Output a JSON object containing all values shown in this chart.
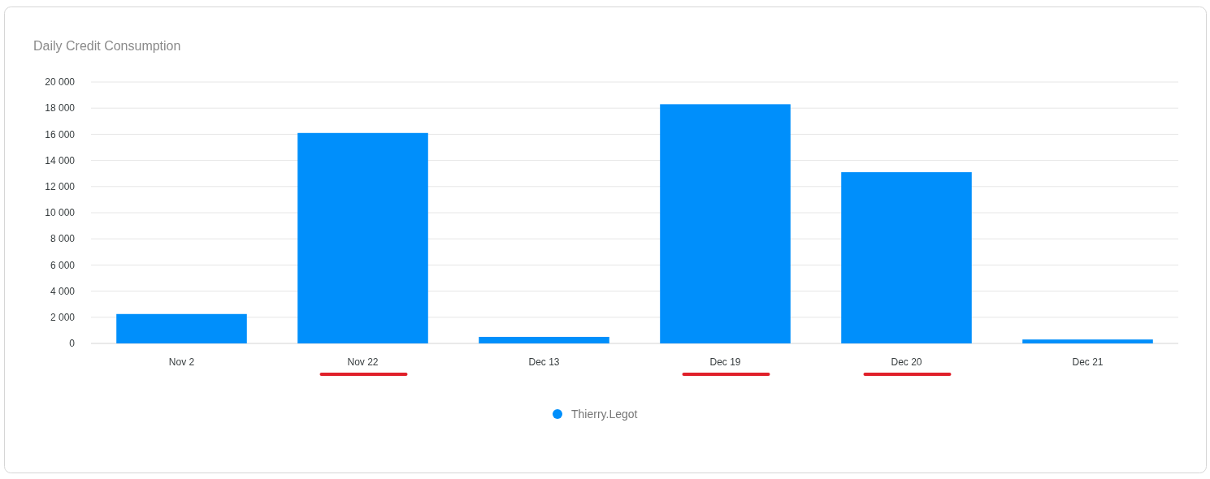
{
  "chart_data": {
    "type": "bar",
    "title": "Daily Credit Consumption",
    "categories": [
      "Nov 2",
      "Nov 22",
      "Dec 13",
      "Dec 19",
      "Dec 20",
      "Dec 21"
    ],
    "series": [
      {
        "name": "Thierry.Legot",
        "color": "#008ffb",
        "values": [
          2250,
          16100,
          500,
          18300,
          13100,
          300
        ]
      }
    ],
    "ylim": [
      0,
      20000
    ],
    "yticks": [
      0,
      {
        "value": 2000,
        "label": "2 000"
      },
      {
        "value": 4000,
        "label": "4 000"
      },
      {
        "value": 6000,
        "label": "6 000"
      },
      {
        "value": 8000,
        "label": "8 000"
      },
      {
        "value": 10000,
        "label": "10 000"
      },
      {
        "value": 12000,
        "label": "12 000"
      },
      {
        "value": 14000,
        "label": "14 000"
      },
      {
        "value": 16000,
        "label": "16 000"
      },
      {
        "value": 18000,
        "label": "18 000"
      },
      {
        "value": 20000,
        "label": "20 000"
      }
    ],
    "grid": "y",
    "legend": "bottom"
  }
}
